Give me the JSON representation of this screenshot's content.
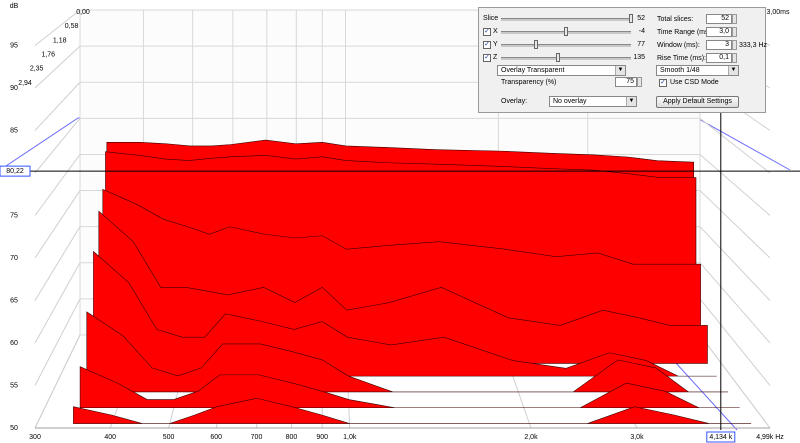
{
  "chart_data": {
    "type": "waterfall",
    "y_label": "dB",
    "color": "#ff0000",
    "log_x": true,
    "grid": true,
    "xlim": [
      300,
      4990
    ],
    "xticks": [
      300,
      400,
      500,
      600,
      700,
      800,
      900,
      {
        "value": 1000,
        "label": "1,0k"
      },
      {
        "value": 2000,
        "label": "2,0k"
      },
      {
        "value": 3000,
        "label": "3,0k"
      },
      {
        "value": 4990,
        "label": "4,99k Hz"
      }
    ],
    "ylim": [
      50,
      95
    ],
    "yticks": [
      50,
      55,
      60,
      65,
      70,
      75,
      80,
      85,
      90,
      95
    ],
    "zlim": [
      0,
      2.94
    ],
    "zticks": [
      {
        "value": 0,
        "label": "0,00"
      },
      {
        "value": 0.58,
        "label": "0,58"
      },
      {
        "value": 1.18,
        "label": "1,18"
      },
      {
        "value": 1.76,
        "label": "1,76"
      },
      {
        "value": 2.35,
        "label": "2,35"
      },
      {
        "value": 2.94,
        "label": "2,94"
      }
    ],
    "x": [
      345,
      400,
      450,
      500,
      550,
      600,
      700,
      800,
      900,
      1000,
      1200,
      1500,
      2000,
      2500,
      3000,
      3500,
      4000,
      4700
    ],
    "slices": [
      {
        "time": 0.3,
        "values": [
          77.5,
          77.5,
          77.3,
          77,
          77,
          77.2,
          77.8,
          77.3,
          77.5,
          77,
          76.8,
          76.5,
          76.3,
          76,
          75.8,
          75.5,
          75,
          74.8
        ]
      },
      {
        "time": 0.4,
        "values": [
          76.5,
          76,
          75.5,
          75.3,
          75.6,
          75.8,
          76,
          75.5,
          75.8,
          75.3,
          75,
          74.8,
          74.5,
          74.2,
          74,
          73.5,
          73,
          73
        ]
      },
      {
        "time": 0.6,
        "values": [
          72,
          70,
          68,
          67,
          66,
          67,
          66,
          65.5,
          65.8,
          64,
          64.5,
          65,
          64,
          63,
          63.5,
          62,
          62,
          62
        ]
      },
      {
        "time": 0.9,
        "values": [
          70,
          66,
          60,
          60,
          59.5,
          59,
          60,
          58,
          60,
          57,
          58,
          60,
          56,
          55,
          57,
          56,
          55,
          55
        ]
      },
      {
        "time": 1.3,
        "values": [
          66,
          62,
          56,
          55,
          55,
          58,
          57,
          56,
          57,
          55,
          54,
          55,
          52,
          51,
          53,
          52,
          50,
          50
        ]
      },
      {
        "time": 1.8,
        "values": [
          60,
          57,
          53,
          52,
          53,
          56,
          56,
          55,
          54,
          52,
          50,
          50,
          50,
          50,
          54,
          53,
          50,
          50
        ]
      },
      {
        "time": 2.3,
        "values": [
          55,
          53,
          51,
          51,
          52,
          54,
          54,
          53,
          52,
          51,
          50,
          50,
          50,
          50,
          53,
          52,
          50,
          50
        ]
      },
      {
        "time": 2.8,
        "values": [
          52,
          51,
          50,
          50,
          51,
          52,
          53,
          52,
          51,
          50,
          50,
          50,
          50,
          50,
          52,
          51,
          50,
          50
        ]
      }
    ],
    "cursor": {
      "level": {
        "value": 80.22,
        "label": "80,22"
      },
      "frequency": {
        "value": 4134,
        "label": "4,134 k"
      },
      "time": {
        "value": 3.0,
        "label": "3,00ms"
      }
    }
  },
  "controls": {
    "slice": {
      "label": "Slice",
      "value": "52"
    },
    "x": {
      "label": "X",
      "value": "-4"
    },
    "y": {
      "label": "Y",
      "value": "77"
    },
    "z": {
      "label": "Z",
      "value": "135"
    },
    "view_mode": "Overlay Transparent",
    "transparency": {
      "label": "Transparency (%)",
      "value": "75"
    },
    "overlay": {
      "label": "Overlay:",
      "value": "No overlay"
    },
    "total_slices": {
      "label": "Total slices:",
      "value": "52"
    },
    "time_range": {
      "label": "Time Range (ms):",
      "value": "3,0"
    },
    "window": {
      "label": "Window (ms):",
      "value": "3",
      "readout": "333,3 Hz"
    },
    "rise_time": {
      "label": "Rise Time (ms):",
      "value": "0,1"
    },
    "smoothing": "Smooth 1/48",
    "csd_mode": "Use CSD Mode",
    "apply_button": "Apply Default Settings"
  }
}
